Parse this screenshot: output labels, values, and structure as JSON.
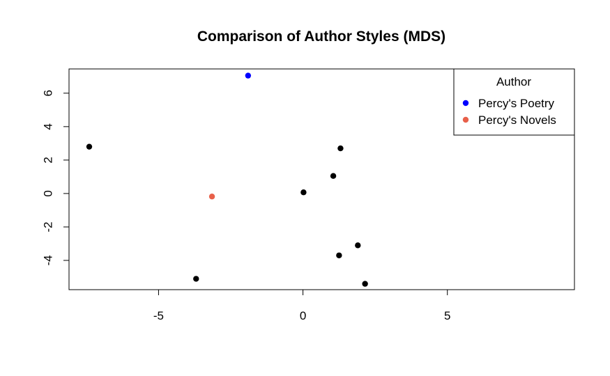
{
  "chart_data": {
    "type": "scatter",
    "title": "Comparison of Author Styles (MDS)",
    "xlabel": "",
    "ylabel": "",
    "xlim": [
      -8.1,
      9.4
    ],
    "ylim": [
      -5.75,
      7.45
    ],
    "x_ticks": [
      -5,
      0,
      5
    ],
    "y_ticks": [
      -4,
      -2,
      0,
      2,
      4,
      6
    ],
    "grid": false,
    "legend": {
      "title": "Author",
      "placement": "top-right",
      "entries": [
        {
          "label": "Percy's Poetry",
          "color": "#0000ff"
        },
        {
          "label": "Percy's Novels",
          "color": "#e8604a"
        }
      ]
    },
    "points": [
      {
        "x": -1.9,
        "y": 7.05,
        "color": "#0000ff"
      },
      {
        "x": -7.4,
        "y": 2.8,
        "color": "#000000"
      },
      {
        "x": 1.3,
        "y": 2.7,
        "color": "#000000"
      },
      {
        "x": 1.05,
        "y": 1.05,
        "color": "#000000"
      },
      {
        "x": 0.02,
        "y": 0.07,
        "color": "#000000"
      },
      {
        "x": -3.15,
        "y": -0.18,
        "color": "#e8604a"
      },
      {
        "x": 1.9,
        "y": -3.1,
        "color": "#000000"
      },
      {
        "x": 1.25,
        "y": -3.7,
        "color": "#000000"
      },
      {
        "x": -3.7,
        "y": -5.1,
        "color": "#000000"
      },
      {
        "x": 2.15,
        "y": -5.4,
        "color": "#000000"
      }
    ]
  }
}
